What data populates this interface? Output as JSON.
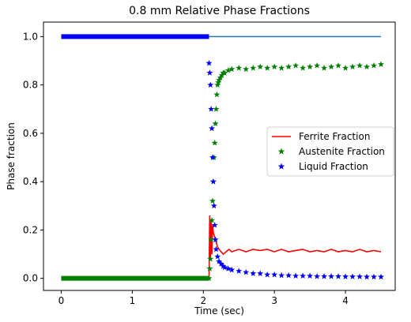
{
  "chart_data": {
    "type": "line",
    "title": "0.8 mm Relative Phase Fractions",
    "xlabel": "Time (sec)",
    "ylabel": "Phase fraction",
    "xlim": [
      -0.25,
      4.7
    ],
    "ylim": [
      -0.05,
      1.06
    ],
    "xticks": [
      0,
      1,
      2,
      3,
      4
    ],
    "xtick_labels": [
      "0",
      "1",
      "2",
      "3",
      "4"
    ],
    "yticks": [
      0.0,
      0.2,
      0.4,
      0.6,
      0.8,
      1.0
    ],
    "ytick_labels": [
      "0.0",
      "0.2",
      "0.4",
      "0.6",
      "0.8",
      "1.0"
    ],
    "grid": false,
    "legend_position": "center-right",
    "legend": [
      "Ferrite Fraction",
      "Austenite Fraction",
      "Liquid Fraction"
    ],
    "series": [
      {
        "name": "Ferrite Fraction",
        "style": "line",
        "color": "#ff0000",
        "x": [
          0.0,
          2.08,
          2.09,
          2.1,
          2.11,
          2.12,
          2.13,
          2.14,
          2.16,
          2.18,
          2.2,
          2.22,
          2.25,
          2.28,
          2.32,
          2.36,
          2.4,
          2.5,
          2.6,
          2.7,
          2.8,
          2.9,
          3.0,
          3.1,
          3.2,
          3.3,
          3.4,
          3.5,
          3.6,
          3.7,
          3.8,
          3.9,
          4.0,
          4.1,
          4.2,
          4.3,
          4.4,
          4.5
        ],
        "y": [
          0.0,
          0.0,
          0.26,
          0.08,
          0.24,
          0.1,
          0.22,
          0.19,
          0.17,
          0.15,
          0.13,
          0.12,
          0.11,
          0.1,
          0.11,
          0.12,
          0.11,
          0.12,
          0.11,
          0.12,
          0.115,
          0.12,
          0.11,
          0.12,
          0.11,
          0.115,
          0.12,
          0.11,
          0.115,
          0.11,
          0.12,
          0.11,
          0.115,
          0.11,
          0.12,
          0.11,
          0.115,
          0.11
        ]
      },
      {
        "name": "Austenite Fraction",
        "style": "markers",
        "marker": "star",
        "color": "#008000",
        "x": [
          2.08,
          2.09,
          2.1,
          2.11,
          2.12,
          2.13,
          2.14,
          2.15,
          2.16,
          2.17,
          2.18,
          2.19,
          2.2,
          2.21,
          2.22,
          2.24,
          2.26,
          2.28,
          2.3,
          2.35,
          2.4,
          2.5,
          2.6,
          2.7,
          2.8,
          2.9,
          3.0,
          3.1,
          3.2,
          3.3,
          3.4,
          3.5,
          3.6,
          3.7,
          3.8,
          3.9,
          4.0,
          4.1,
          4.2,
          4.3,
          4.4,
          4.5
        ],
        "y": [
          0.0,
          0.04,
          0.08,
          0.16,
          0.24,
          0.32,
          0.4,
          0.5,
          0.56,
          0.64,
          0.7,
          0.76,
          0.8,
          0.81,
          0.82,
          0.83,
          0.84,
          0.85,
          0.85,
          0.86,
          0.865,
          0.87,
          0.865,
          0.87,
          0.875,
          0.87,
          0.875,
          0.87,
          0.875,
          0.88,
          0.87,
          0.875,
          0.88,
          0.87,
          0.875,
          0.88,
          0.87,
          0.875,
          0.88,
          0.875,
          0.88,
          0.885
        ],
        "baseline": {
          "x_from": 0.0,
          "x_to": 2.08,
          "y": 0.0
        }
      },
      {
        "name": "Liquid Fraction",
        "style": "markers",
        "marker": "star",
        "color": "#0000ff",
        "x": [
          2.08,
          2.09,
          2.1,
          2.11,
          2.12,
          2.13,
          2.14,
          2.15,
          2.16,
          2.17,
          2.18,
          2.2,
          2.22,
          2.25,
          2.28,
          2.3,
          2.35,
          2.4,
          2.5,
          2.6,
          2.7,
          2.8,
          2.9,
          3.0,
          3.1,
          3.2,
          3.3,
          3.4,
          3.5,
          3.6,
          3.7,
          3.8,
          3.9,
          4.0,
          4.1,
          4.2,
          4.3,
          4.4,
          4.5
        ],
        "y": [
          0.89,
          0.85,
          0.8,
          0.7,
          0.62,
          0.5,
          0.4,
          0.3,
          0.22,
          0.16,
          0.12,
          0.09,
          0.07,
          0.06,
          0.05,
          0.045,
          0.04,
          0.035,
          0.03,
          0.025,
          0.02,
          0.02,
          0.015,
          0.015,
          0.012,
          0.012,
          0.01,
          0.01,
          0.01,
          0.008,
          0.008,
          0.008,
          0.008,
          0.007,
          0.007,
          0.007,
          0.006,
          0.006,
          0.006
        ],
        "baseline": {
          "x_from": 0.0,
          "x_to": 2.08,
          "y": 1.0
        }
      },
      {
        "name": "",
        "style": "line",
        "color": "#1f77b4",
        "x": [
          2.08,
          4.5
        ],
        "y": [
          1.0,
          1.0
        ]
      }
    ]
  }
}
